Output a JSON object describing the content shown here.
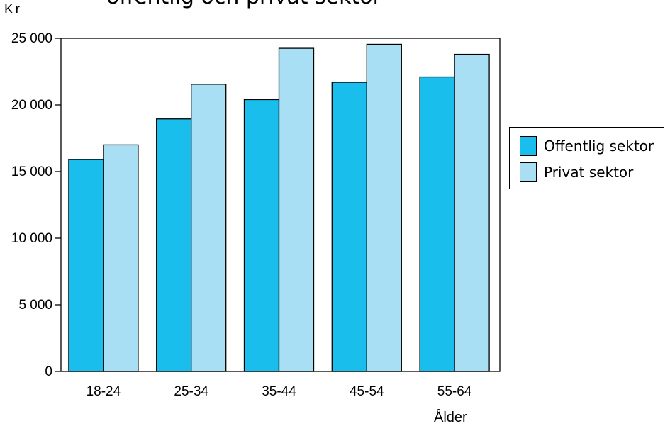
{
  "chart_data": {
    "type": "bar",
    "title_fragment": "offentlig och privat sektor",
    "unit_label": "Kr",
    "xlabel": "Ålder",
    "ylabel": "",
    "categories": [
      "18-24",
      "25-34",
      "35-44",
      "45-54",
      "55-64"
    ],
    "series": [
      {
        "name": "Offentlig sektor",
        "values": [
          15900,
          18950,
          20400,
          21700,
          22100
        ],
        "color": "#1ABEEC"
      },
      {
        "name": "Privat sektor",
        "values": [
          17000,
          21550,
          24250,
          24550,
          23800
        ],
        "color": "#A9DFF5"
      }
    ],
    "ylim": [
      0,
      25000
    ],
    "yticks": [
      {
        "value": 0,
        "label": "0"
      },
      {
        "value": 5000,
        "label": "5 000"
      },
      {
        "value": 10000,
        "label": "10 000"
      },
      {
        "value": 15000,
        "label": "15 000"
      },
      {
        "value": 20000,
        "label": "20 000"
      },
      {
        "value": 25000,
        "label": "25 000"
      }
    ],
    "grid": false,
    "legend_position": "right"
  }
}
